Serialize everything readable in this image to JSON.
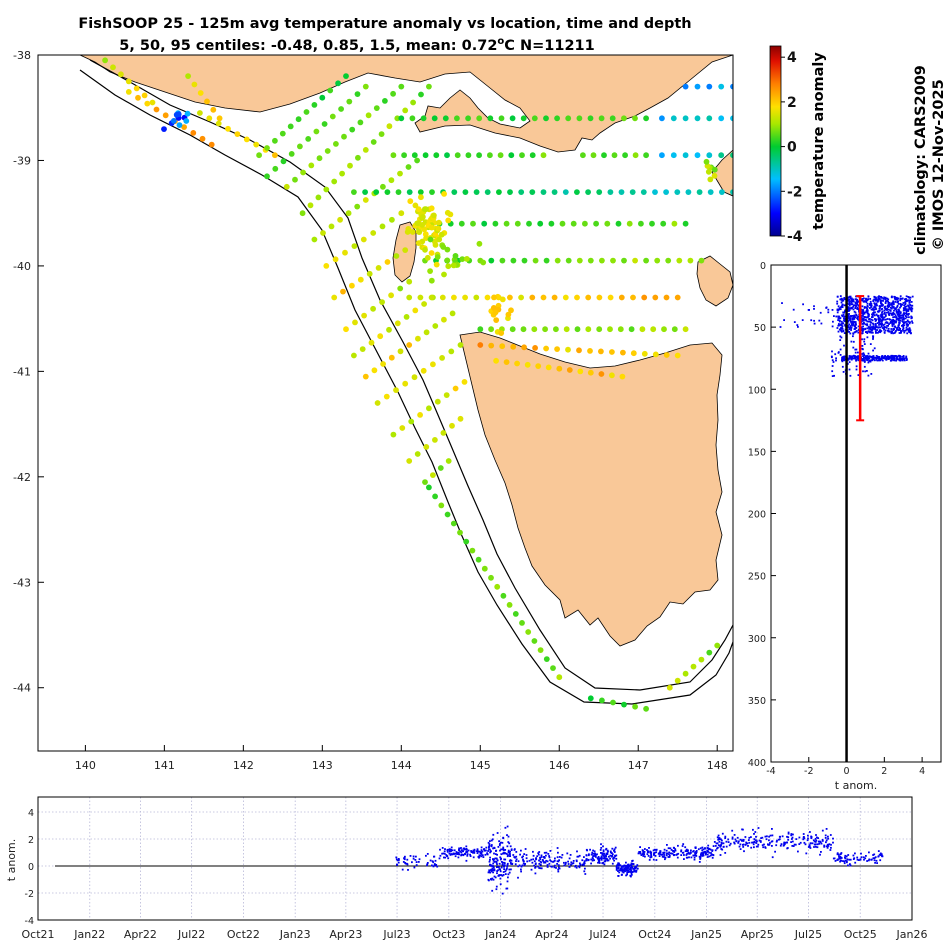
{
  "title": {
    "line1": "FishSOOP 25 - 125m avg temperature anomaly vs location, time and depth",
    "line2_prefix": "5, 50, 95 centiles: -0.48, 0.85, 1.5, mean: 0.72",
    "line2_degree": "o",
    "line2_suffix": "C N=11211"
  },
  "side_labels": {
    "climatology": "climatology: CARS2009",
    "credit": "© IMOS 12-Nov-2025"
  },
  "colors": {
    "land": "#f9c898",
    "points": "#0000ee",
    "error_bar": "#ff0000",
    "zero_line": "#000000",
    "grid": "#b8b8d8"
  },
  "chart_data": [
    {
      "id": "map",
      "type": "scatter",
      "title": "",
      "xlabel": "",
      "ylabel": "",
      "xlim": [
        139.4,
        148.2
      ],
      "ylim": [
        -44.6,
        -38.0
      ],
      "xticks": [
        140,
        141,
        142,
        143,
        144,
        145,
        146,
        147,
        148
      ],
      "yticks": [
        -38,
        -39,
        -40,
        -41,
        -42,
        -43,
        -44
      ],
      "color_variable": "temperature anomaly",
      "point_tracks": [
        {
          "from": [
            140.25,
            -38.05
          ],
          "to": [
            140.85,
            -38.45
          ],
          "values": [
            1.2,
            1.8
          ]
        },
        {
          "from": [
            140.55,
            -38.35
          ],
          "to": [
            141.6,
            -38.85
          ],
          "values": [
            2.0,
            2.6
          ]
        },
        {
          "from": [
            141.3,
            -38.2
          ],
          "to": [
            141.7,
            -38.6
          ],
          "values": [
            1.3,
            2.0
          ]
        },
        {
          "from": [
            141.45,
            -38.55
          ],
          "to": [
            142.4,
            -38.95
          ],
          "values": [
            1.5,
            1.9
          ]
        },
        {
          "from": [
            142.2,
            -38.95
          ],
          "to": [
            143.3,
            -38.2
          ],
          "values": [
            0.5,
            0.3
          ]
        },
        {
          "from": [
            142.3,
            -39.15
          ],
          "to": [
            143.55,
            -38.3
          ],
          "values": [
            0.6,
            0.4
          ]
        },
        {
          "from": [
            142.55,
            -39.25
          ],
          "to": [
            144.0,
            -38.3
          ],
          "values": [
            0.9,
            0.5
          ]
        },
        {
          "from": [
            142.75,
            -39.5
          ],
          "to": [
            144.35,
            -38.3
          ],
          "values": [
            1.1,
            0.6
          ]
        },
        {
          "from": [
            142.9,
            -39.75
          ],
          "to": [
            144.2,
            -39.0
          ],
          "values": [
            1.3,
            0.8
          ]
        },
        {
          "from": [
            143.05,
            -40.0
          ],
          "to": [
            144.0,
            -39.5
          ],
          "values": [
            1.6,
            1.1
          ]
        },
        {
          "from": [
            143.15,
            -40.3
          ],
          "to": [
            144.05,
            -39.85
          ],
          "values": [
            1.8,
            1.4
          ]
        },
        {
          "from": [
            143.3,
            -40.6
          ],
          "to": [
            144.1,
            -40.15
          ],
          "values": [
            1.6,
            1.0
          ]
        },
        {
          "from": [
            143.4,
            -40.85
          ],
          "to": [
            144.4,
            -40.3
          ],
          "values": [
            1.4,
            1.0
          ]
        },
        {
          "from": [
            143.55,
            -41.05
          ],
          "to": [
            144.65,
            -40.45
          ],
          "values": [
            1.9,
            1.1
          ]
        },
        {
          "from": [
            143.7,
            -41.3
          ],
          "to": [
            144.75,
            -40.75
          ],
          "values": [
            1.5,
            1.3
          ]
        },
        {
          "from": [
            143.9,
            -41.6
          ],
          "to": [
            144.8,
            -41.1
          ],
          "values": [
            1.2,
            1.6
          ]
        },
        {
          "from": [
            144.1,
            -41.85
          ],
          "to": [
            144.75,
            -41.45
          ],
          "values": [
            1.1,
            1.4
          ]
        },
        {
          "from": [
            144.3,
            -42.05
          ],
          "to": [
            144.6,
            -41.85
          ],
          "values": [
            0.8,
            1.0
          ]
        },
        {
          "from": [
            144.0,
            -38.6
          ],
          "to": [
            147.1,
            -38.6
          ],
          "values": [
            0.3,
            0.2
          ]
        },
        {
          "from": [
            143.9,
            -38.95
          ],
          "to": [
            145.8,
            -38.95
          ],
          "values": [
            0.3,
            0.5
          ]
        },
        {
          "from": [
            146.3,
            -38.95
          ],
          "to": [
            147.1,
            -38.95
          ],
          "values": [
            0.3,
            0.5
          ]
        },
        {
          "from": [
            147.3,
            -38.95
          ],
          "to": [
            148.2,
            -38.95
          ],
          "values": [
            -1.5,
            -1.0
          ]
        },
        {
          "from": [
            147.3,
            -38.6
          ],
          "to": [
            148.2,
            -38.6
          ],
          "values": [
            -1.2,
            -1.0
          ]
        },
        {
          "from": [
            147.6,
            -38.3
          ],
          "to": [
            148.2,
            -38.3
          ],
          "values": [
            -1.8,
            -1.5
          ]
        },
        {
          "from": [
            143.4,
            -39.3
          ],
          "to": [
            148.2,
            -39.3
          ],
          "values": [
            0.3,
            -1.0
          ]
        },
        {
          "from": [
            144.2,
            -39.6
          ],
          "to": [
            147.6,
            -39.6
          ],
          "values": [
            0.2,
            0.5
          ]
        },
        {
          "from": [
            144.3,
            -39.95
          ],
          "to": [
            147.8,
            -39.95
          ],
          "values": [
            0.2,
            1.0
          ]
        },
        {
          "from": [
            144.1,
            -40.3
          ],
          "to": [
            147.5,
            -40.3
          ],
          "values": [
            1.5,
            2.4
          ]
        },
        {
          "from": [
            145.0,
            -40.6
          ],
          "to": [
            147.6,
            -40.6
          ],
          "values": [
            0.6,
            1.0
          ]
        },
        {
          "from": [
            145.0,
            -40.75
          ],
          "to": [
            147.5,
            -40.85
          ],
          "values": [
            2.3,
            1.9
          ]
        },
        {
          "from": [
            145.2,
            -40.9
          ],
          "to": [
            146.8,
            -41.05
          ],
          "values": [
            2.0,
            1.8
          ]
        },
        {
          "from": [
            144.35,
            -42.1
          ],
          "to": [
            146.0,
            -43.9
          ],
          "values": [
            0.4,
            0.8
          ]
        },
        {
          "from": [
            146.4,
            -44.1
          ],
          "to": [
            147.1,
            -44.2
          ],
          "values": [
            0.3,
            0.6
          ]
        },
        {
          "from": [
            147.4,
            -44.0
          ],
          "to": [
            148.0,
            -43.6
          ],
          "values": [
            1.5,
            1.0
          ]
        }
      ],
      "point_clusters": [
        {
          "center": [
            144.35,
            -39.65
          ],
          "spread": [
            0.12,
            0.15
          ],
          "count": 70,
          "value_range": [
            1.2,
            1.9
          ]
        },
        {
          "center": [
            144.6,
            -39.9
          ],
          "spread": [
            0.2,
            0.08
          ],
          "count": 20,
          "value_range": [
            0.5,
            1.2
          ]
        },
        {
          "center": [
            145.3,
            -40.4
          ],
          "spread": [
            0.1,
            0.08
          ],
          "count": 15,
          "value_range": [
            1.6,
            2.2
          ]
        },
        {
          "center": [
            141.15,
            -38.6
          ],
          "spread": [
            0.1,
            0.06
          ],
          "count": 12,
          "value_range": [
            -1.5,
            -3.0
          ]
        },
        {
          "center": [
            147.9,
            -39.1
          ],
          "spread": [
            0.05,
            0.06
          ],
          "count": 8,
          "value_range": [
            0.5,
            1.6
          ]
        }
      ]
    },
    {
      "id": "colorbar",
      "type": "heatmap",
      "title": "",
      "label": "temperature anomaly",
      "range": [
        -4,
        4.5
      ],
      "ticks": [
        4,
        2,
        0,
        -2,
        -4
      ]
    },
    {
      "id": "depth",
      "type": "scatter",
      "title": "",
      "xlabel": "t anom.",
      "ylabel": "",
      "xlim": [
        -4,
        5
      ],
      "ylim": [
        0,
        400
      ],
      "y_inverted": true,
      "xticks": [
        -4,
        -2,
        0,
        2,
        4
      ],
      "yticks": [
        0,
        50,
        100,
        150,
        200,
        250,
        300,
        350,
        400
      ],
      "clusters": [
        {
          "depth_range": [
            25,
            55
          ],
          "anom_range": [
            -0.5,
            3.5
          ],
          "count": 900
        },
        {
          "depth_range": [
            73,
            77
          ],
          "anom_range": [
            -0.3,
            3.2
          ],
          "count": 220
        },
        {
          "depth_range": [
            40,
            90
          ],
          "anom_range": [
            -0.8,
            1.5
          ],
          "count": 120
        },
        {
          "depth_range": [
            30,
            50
          ],
          "anom_range": [
            -3.5,
            -0.5
          ],
          "count": 25
        }
      ],
      "error_bar": {
        "x": 0.72,
        "y_top": 25,
        "y_bottom": 125
      }
    },
    {
      "id": "time",
      "type": "scatter",
      "title": "",
      "xlabel": "",
      "ylabel": "t anom.",
      "xlim": [
        "2021-10-01",
        "2026-01-01"
      ],
      "ylim": [
        -4,
        5
      ],
      "xticks": [
        "Oct21",
        "Jan22",
        "Apr22",
        "Jul22",
        "Oct22",
        "Jan23",
        "Apr23",
        "Jul23",
        "Oct23",
        "Jan24",
        "Apr24",
        "Jul24",
        "Oct24",
        "Jan25",
        "Apr25",
        "Jul25",
        "Oct25",
        "Jan26"
      ],
      "yticks": [
        4,
        2,
        0,
        -2,
        -4
      ],
      "segments": [
        {
          "start": "2023-06-25",
          "end": "2023-09-15",
          "mean": 0.35,
          "spread": 0.4,
          "count": 50
        },
        {
          "start": "2023-09-15",
          "end": "2023-12-10",
          "mean": 1.0,
          "spread": 0.35,
          "count": 120
        },
        {
          "start": "2023-12-10",
          "end": "2024-01-20",
          "mean": 0.5,
          "spread": 1.6,
          "count": 170
        },
        {
          "start": "2024-01-20",
          "end": "2024-04-20",
          "mean": 0.4,
          "spread": 0.7,
          "count": 120
        },
        {
          "start": "2024-04-20",
          "end": "2024-06-01",
          "mean": 0.2,
          "spread": 0.6,
          "count": 40
        },
        {
          "start": "2024-06-01",
          "end": "2024-07-25",
          "mean": 0.7,
          "spread": 0.5,
          "count": 110
        },
        {
          "start": "2024-07-25",
          "end": "2024-09-01",
          "mean": -0.2,
          "spread": 0.45,
          "count": 120
        },
        {
          "start": "2024-09-01",
          "end": "2025-01-15",
          "mean": 1.0,
          "spread": 0.4,
          "count": 200
        },
        {
          "start": "2025-01-15",
          "end": "2025-05-01",
          "mean": 1.7,
          "spread": 0.7,
          "count": 120
        },
        {
          "start": "2025-05-01",
          "end": "2025-08-15",
          "mean": 1.8,
          "spread": 0.6,
          "count": 110
        },
        {
          "start": "2025-08-15",
          "end": "2025-11-10",
          "mean": 0.6,
          "spread": 0.35,
          "count": 80
        }
      ]
    }
  ]
}
